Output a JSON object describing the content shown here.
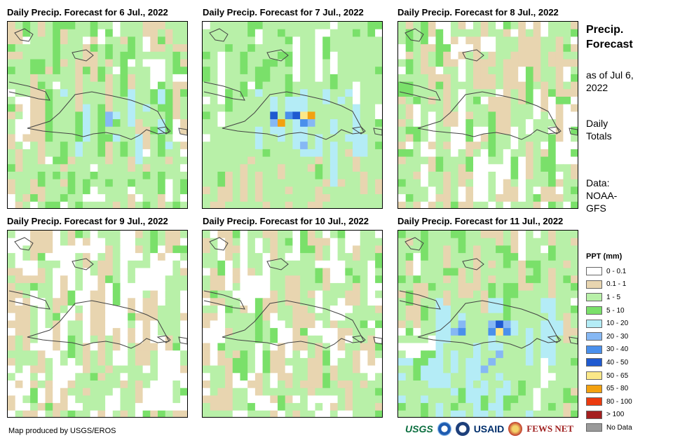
{
  "panels": [
    {
      "title": "Daily Precip. Forecast for 6 Jul., 2022"
    },
    {
      "title": "Daily Precip. Forecast for 7 Jul., 2022"
    },
    {
      "title": "Daily Precip. Forecast for 8 Jul., 2022"
    },
    {
      "title": "Daily Precip. Forecast for 9 Jul., 2022"
    },
    {
      "title": "Daily Precip. Forecast for 10 Jul., 2022"
    },
    {
      "title": "Daily Precip. Forecast for 11 Jul., 2022"
    }
  ],
  "side": {
    "title": "Precip. Forecast",
    "as_of": "as of Jul 6, 2022",
    "totals": "Daily Totals",
    "data_source": "Data: NOAA-GFS"
  },
  "legend": {
    "title": "PPT (mm)",
    "items": [
      {
        "label": "0 - 0.1",
        "color": "#ffffff"
      },
      {
        "label": "0.1 - 1",
        "color": "#e8d5b0"
      },
      {
        "label": "1 - 5",
        "color": "#b8f0a8"
      },
      {
        "label": "5 - 10",
        "color": "#7ae06a"
      },
      {
        "label": "10 - 20",
        "color": "#b4ecf6"
      },
      {
        "label": "20 - 30",
        "color": "#86b8f4"
      },
      {
        "label": "30 - 40",
        "color": "#4a90ec"
      },
      {
        "label": "40 - 50",
        "color": "#1f5ad0"
      },
      {
        "label": "50 - 65",
        "color": "#fbe888"
      },
      {
        "label": "65 - 80",
        "color": "#f3a10f"
      },
      {
        "label": "80 - 100",
        "color": "#ec3a0e"
      },
      {
        "label": "> 100",
        "color": "#a41f1f"
      },
      {
        "label": "No Data",
        "color": "#9a9a9a"
      }
    ]
  },
  "credit": "Map produced by USGS/EROS",
  "logos": {
    "usgs": "USGS",
    "usgs_icon": "noaa-logo-icon",
    "usaid": "USAID",
    "fews": "FEWS NET"
  }
}
